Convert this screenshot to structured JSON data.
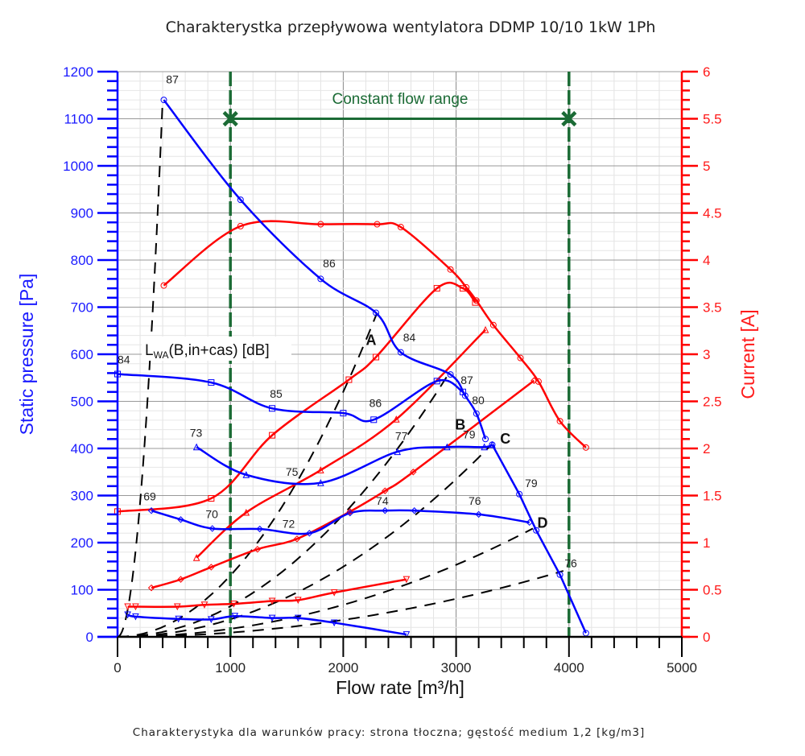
{
  "chart_data": {
    "type": "line",
    "title": "Charakterystka przepływowa wentylatora DDMP 10/10 1kW 1Ph",
    "footer": "Charakterystyka dla warunków pracy: strona tłoczna; gęstość medium 1,2 [kg/m3]",
    "xlabel": "Flow rate [m³/h]",
    "ylabel_left": "Static pressure [Pa]",
    "ylabel_right": "Current [A]",
    "xlim": [
      0,
      5000
    ],
    "ylim_left": [
      0,
      1200
    ],
    "ylim_right": [
      0,
      6
    ],
    "x_ticks": [
      "0",
      "1000",
      "2000",
      "3000",
      "4000",
      "5000"
    ],
    "y_ticks_left": [
      "0",
      "100",
      "200",
      "300",
      "400",
      "500",
      "600",
      "700",
      "800",
      "900",
      "1000",
      "1100",
      "1200"
    ],
    "y_ticks_right": [
      "0",
      "0.5",
      "1",
      "1.5",
      "2",
      "2.5",
      "3",
      "3.5",
      "4",
      "4.5",
      "5",
      "5.5",
      "6"
    ],
    "grid": true,
    "colors": {
      "pressure": "#0000ff",
      "current": "#ff0000",
      "range": "#1b6b35",
      "system": "#000000"
    },
    "constant_flow_range": {
      "label": "Constant flow range",
      "x_min": 1000,
      "x_max": 4000,
      "marker_y": 1100
    },
    "lwa_label": {
      "main": "L",
      "sub": "WA",
      "rest": "(B,in+cas) [dB]"
    },
    "pressure_series": [
      {
        "name": "pressure-1",
        "marker": "circle",
        "points": [
          [
            410,
            1140
          ],
          [
            1090,
            928
          ],
          [
            1800,
            760
          ],
          [
            2290,
            688
          ],
          [
            2510,
            604
          ],
          [
            2950,
            557
          ],
          [
            3080,
            512
          ],
          [
            3180,
            474
          ],
          [
            3260,
            420
          ]
        ]
      },
      {
        "name": "pressure-2",
        "marker": "square",
        "points": [
          [
            0,
            558
          ],
          [
            830,
            540
          ],
          [
            1370,
            485
          ],
          [
            2000,
            475
          ],
          [
            2270,
            461
          ],
          [
            2830,
            543
          ],
          [
            3060,
            520
          ]
        ]
      },
      {
        "name": "pressure-3",
        "marker": "triangle",
        "points": [
          [
            700,
            403
          ],
          [
            1140,
            344
          ],
          [
            1800,
            327
          ],
          [
            2480,
            393
          ],
          [
            2920,
            403
          ],
          [
            3250,
            403
          ],
          [
            3320,
            408
          ]
        ]
      },
      {
        "name": "pressure-4",
        "marker": "diamond",
        "points": [
          [
            300,
            268
          ],
          [
            560,
            249
          ],
          [
            840,
            230
          ],
          [
            1260,
            229
          ],
          [
            1700,
            220
          ],
          [
            2060,
            263
          ],
          [
            2370,
            268
          ],
          [
            2630,
            268
          ],
          [
            3200,
            260
          ],
          [
            3650,
            243
          ]
        ]
      },
      {
        "name": "pressure-5",
        "marker": "triangle-down",
        "points": [
          [
            90,
            47
          ],
          [
            160,
            43
          ],
          [
            540,
            38
          ],
          [
            830,
            37
          ],
          [
            1040,
            44
          ],
          [
            1370,
            40
          ],
          [
            1600,
            40
          ],
          [
            1920,
            30
          ],
          [
            2560,
            5
          ]
        ]
      },
      {
        "name": "pressure-6",
        "marker": "circle",
        "points": [
          [
            3320,
            408
          ],
          [
            3560,
            303
          ],
          [
            3710,
            226
          ],
          [
            3920,
            132
          ],
          [
            4150,
            8
          ]
        ]
      }
    ],
    "current_series": [
      {
        "name": "current-1",
        "marker": "circle",
        "points": [
          [
            410,
            3.73
          ],
          [
            1090,
            4.36
          ],
          [
            1800,
            4.38
          ],
          [
            2300,
            4.38
          ],
          [
            2510,
            4.35
          ],
          [
            2950,
            3.9
          ],
          [
            3090,
            3.71
          ],
          [
            3180,
            3.57
          ],
          [
            3330,
            3.31
          ],
          [
            3570,
            2.96
          ],
          [
            3730,
            2.71
          ],
          [
            3920,
            2.29
          ],
          [
            4150,
            2.01
          ]
        ]
      },
      {
        "name": "current-2",
        "marker": "square",
        "points": [
          [
            0,
            1.33
          ],
          [
            830,
            1.47
          ],
          [
            1370,
            2.14
          ],
          [
            2050,
            2.73
          ],
          [
            2290,
            2.97
          ],
          [
            2830,
            3.7
          ],
          [
            3060,
            3.7
          ],
          [
            3170,
            3.55
          ]
        ]
      },
      {
        "name": "current-3",
        "marker": "triangle",
        "points": [
          [
            700,
            0.84
          ],
          [
            1140,
            1.32
          ],
          [
            1800,
            1.77
          ],
          [
            2470,
            2.31
          ],
          [
            3260,
            3.26
          ]
        ]
      },
      {
        "name": "current-4",
        "marker": "diamond",
        "points": [
          [
            300,
            0.52
          ],
          [
            560,
            0.61
          ],
          [
            830,
            0.74
          ],
          [
            1240,
            0.93
          ],
          [
            1590,
            1.04
          ],
          [
            2060,
            1.33
          ],
          [
            2370,
            1.55
          ],
          [
            2620,
            1.75
          ],
          [
            3690,
            2.72
          ]
        ]
      },
      {
        "name": "current-5",
        "marker": "triangle-down",
        "points": [
          [
            90,
            0.32
          ],
          [
            160,
            0.32
          ],
          [
            530,
            0.32
          ],
          [
            770,
            0.34
          ],
          [
            1030,
            0.35
          ],
          [
            1370,
            0.38
          ],
          [
            1600,
            0.39
          ],
          [
            1920,
            0.47
          ],
          [
            2560,
            0.61
          ]
        ]
      }
    ],
    "system_curves": [
      {
        "points": [
          [
            0,
            0
          ],
          [
            400,
            1140
          ]
        ]
      },
      {
        "points": [
          [
            0,
            0
          ],
          [
            2300,
            688
          ]
        ]
      },
      {
        "points": [
          [
            0,
            0
          ],
          [
            2930,
            557
          ]
        ]
      },
      {
        "points": [
          [
            0,
            0
          ],
          [
            3300,
            405
          ]
        ]
      },
      {
        "points": [
          [
            0,
            0
          ],
          [
            3680,
            230
          ]
        ]
      },
      {
        "points": [
          [
            0,
            0
          ],
          [
            3950,
            140
          ]
        ]
      }
    ],
    "point_labels": [
      {
        "text": "87",
        "x": 430,
        "y": 1175
      },
      {
        "text": "86",
        "x": 1820,
        "y": 785
      },
      {
        "text": "84",
        "x": 2530,
        "y": 627
      },
      {
        "text": "87",
        "x": 3040,
        "y": 537
      },
      {
        "text": "80",
        "x": 3140,
        "y": 494
      },
      {
        "text": "84",
        "x": 0,
        "y": 580
      },
      {
        "text": "85",
        "x": 1350,
        "y": 508
      },
      {
        "text": "86",
        "x": 2230,
        "y": 488
      },
      {
        "text": "73",
        "x": 640,
        "y": 425
      },
      {
        "text": "75",
        "x": 1490,
        "y": 342
      },
      {
        "text": "77",
        "x": 2460,
        "y": 418
      },
      {
        "text": "79",
        "x": 3060,
        "y": 421
      },
      {
        "text": "69",
        "x": 230,
        "y": 290
      },
      {
        "text": "70",
        "x": 780,
        "y": 252
      },
      {
        "text": "72",
        "x": 1460,
        "y": 232
      },
      {
        "text": "74",
        "x": 2290,
        "y": 280
      },
      {
        "text": "76",
        "x": 3110,
        "y": 280
      },
      {
        "text": "79",
        "x": 3610,
        "y": 318
      },
      {
        "text": "76",
        "x": 3960,
        "y": 148
      }
    ],
    "letter_labels": [
      {
        "text": "A",
        "x": 2200,
        "y": 620
      },
      {
        "text": "B",
        "x": 2990,
        "y": 440
      },
      {
        "text": "C",
        "x": 3390,
        "y": 410
      },
      {
        "text": "D",
        "x": 3720,
        "y": 232
      }
    ]
  }
}
